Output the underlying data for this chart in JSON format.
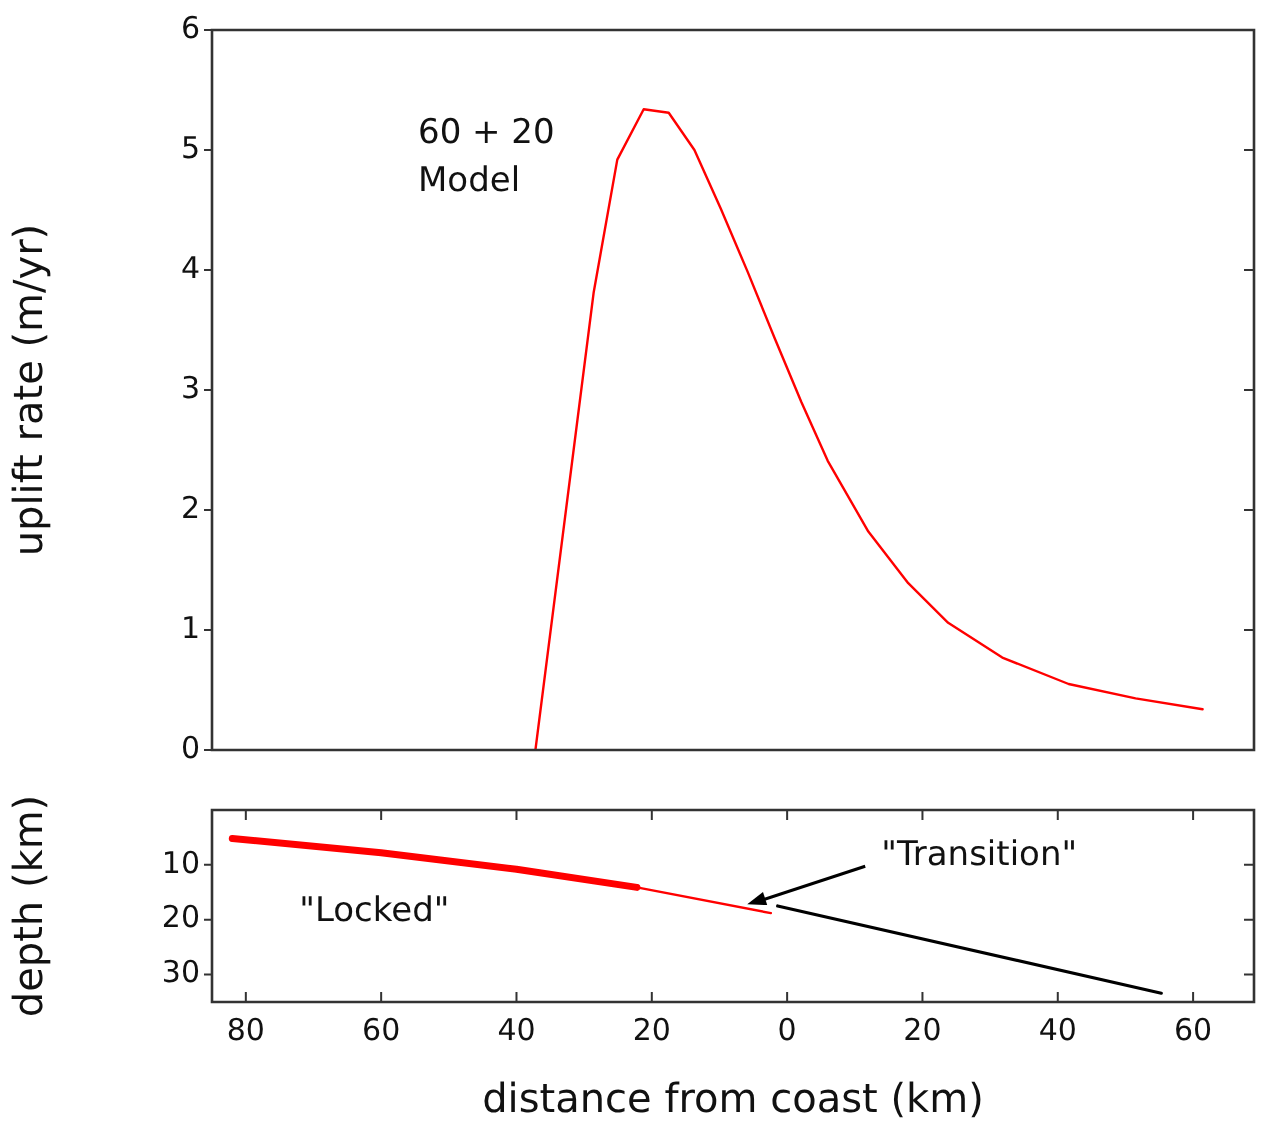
{
  "chart_data": [
    {
      "type": "line",
      "ylabel": "uplift rate (m/yr)",
      "annotations": [
        "60 + 20\nModel"
      ],
      "x": [
        -37.2,
        -28.6,
        -25.1,
        -21.2,
        -17.5,
        -13.7,
        -9.8,
        -5.8,
        -1.9,
        2.1,
        6.0,
        12.0,
        17.9,
        23.8,
        31.8,
        41.6,
        51.5,
        61.4
      ],
      "series": [
        {
          "color": "#ff0000",
          "values": [
            0,
            3.81,
            4.92,
            5.34,
            5.31,
            5.0,
            4.51,
            3.98,
            3.44,
            2.9,
            2.41,
            1.82,
            1.39,
            1.06,
            0.77,
            0.55,
            0.43,
            0.34
          ]
        }
      ],
      "xlim": [
        -85,
        69
      ],
      "ylim": [
        0,
        6
      ],
      "yticks": [
        0,
        1,
        2,
        3,
        4,
        5,
        6
      ],
      "tick_labels": "y",
      "grid": false,
      "legend": false,
      "marker": "none",
      "line_style": "solid"
    },
    {
      "type": "line",
      "xlabel": "distance from coast (km)",
      "ylabel": "depth (km)",
      "annotations": [
        "\"Locked\"",
        {
          "text": "\"Transition\"",
          "x": -5.9,
          "y": 17.2
        }
      ],
      "series": [
        {
          "color": "#ff0000",
          "x": [
            -82,
            -60,
            -40,
            -22.2
          ],
          "values": [
            5.2,
            7.8,
            10.8,
            14.1
          ]
        },
        {
          "color": "#ff0000",
          "x": [
            -22.2,
            -2.4
          ],
          "values": [
            14.1,
            18.8
          ]
        },
        {
          "color": "#000000",
          "x": [
            -1.4,
            55.3
          ],
          "values": [
            17.5,
            33.4
          ]
        }
      ],
      "xlim": [
        -85,
        69
      ],
      "xticks": [
        {
          "value": -80,
          "label": "80"
        },
        {
          "value": -60,
          "label": "60"
        },
        {
          "value": -40,
          "label": "40"
        },
        {
          "value": -20,
          "label": "20"
        },
        0,
        20,
        40,
        60
      ],
      "ylim": [
        35,
        0
      ],
      "yticks": [
        10,
        20,
        30
      ],
      "grid": false,
      "legend": false,
      "marker": "none",
      "line_style": "solid"
    }
  ]
}
